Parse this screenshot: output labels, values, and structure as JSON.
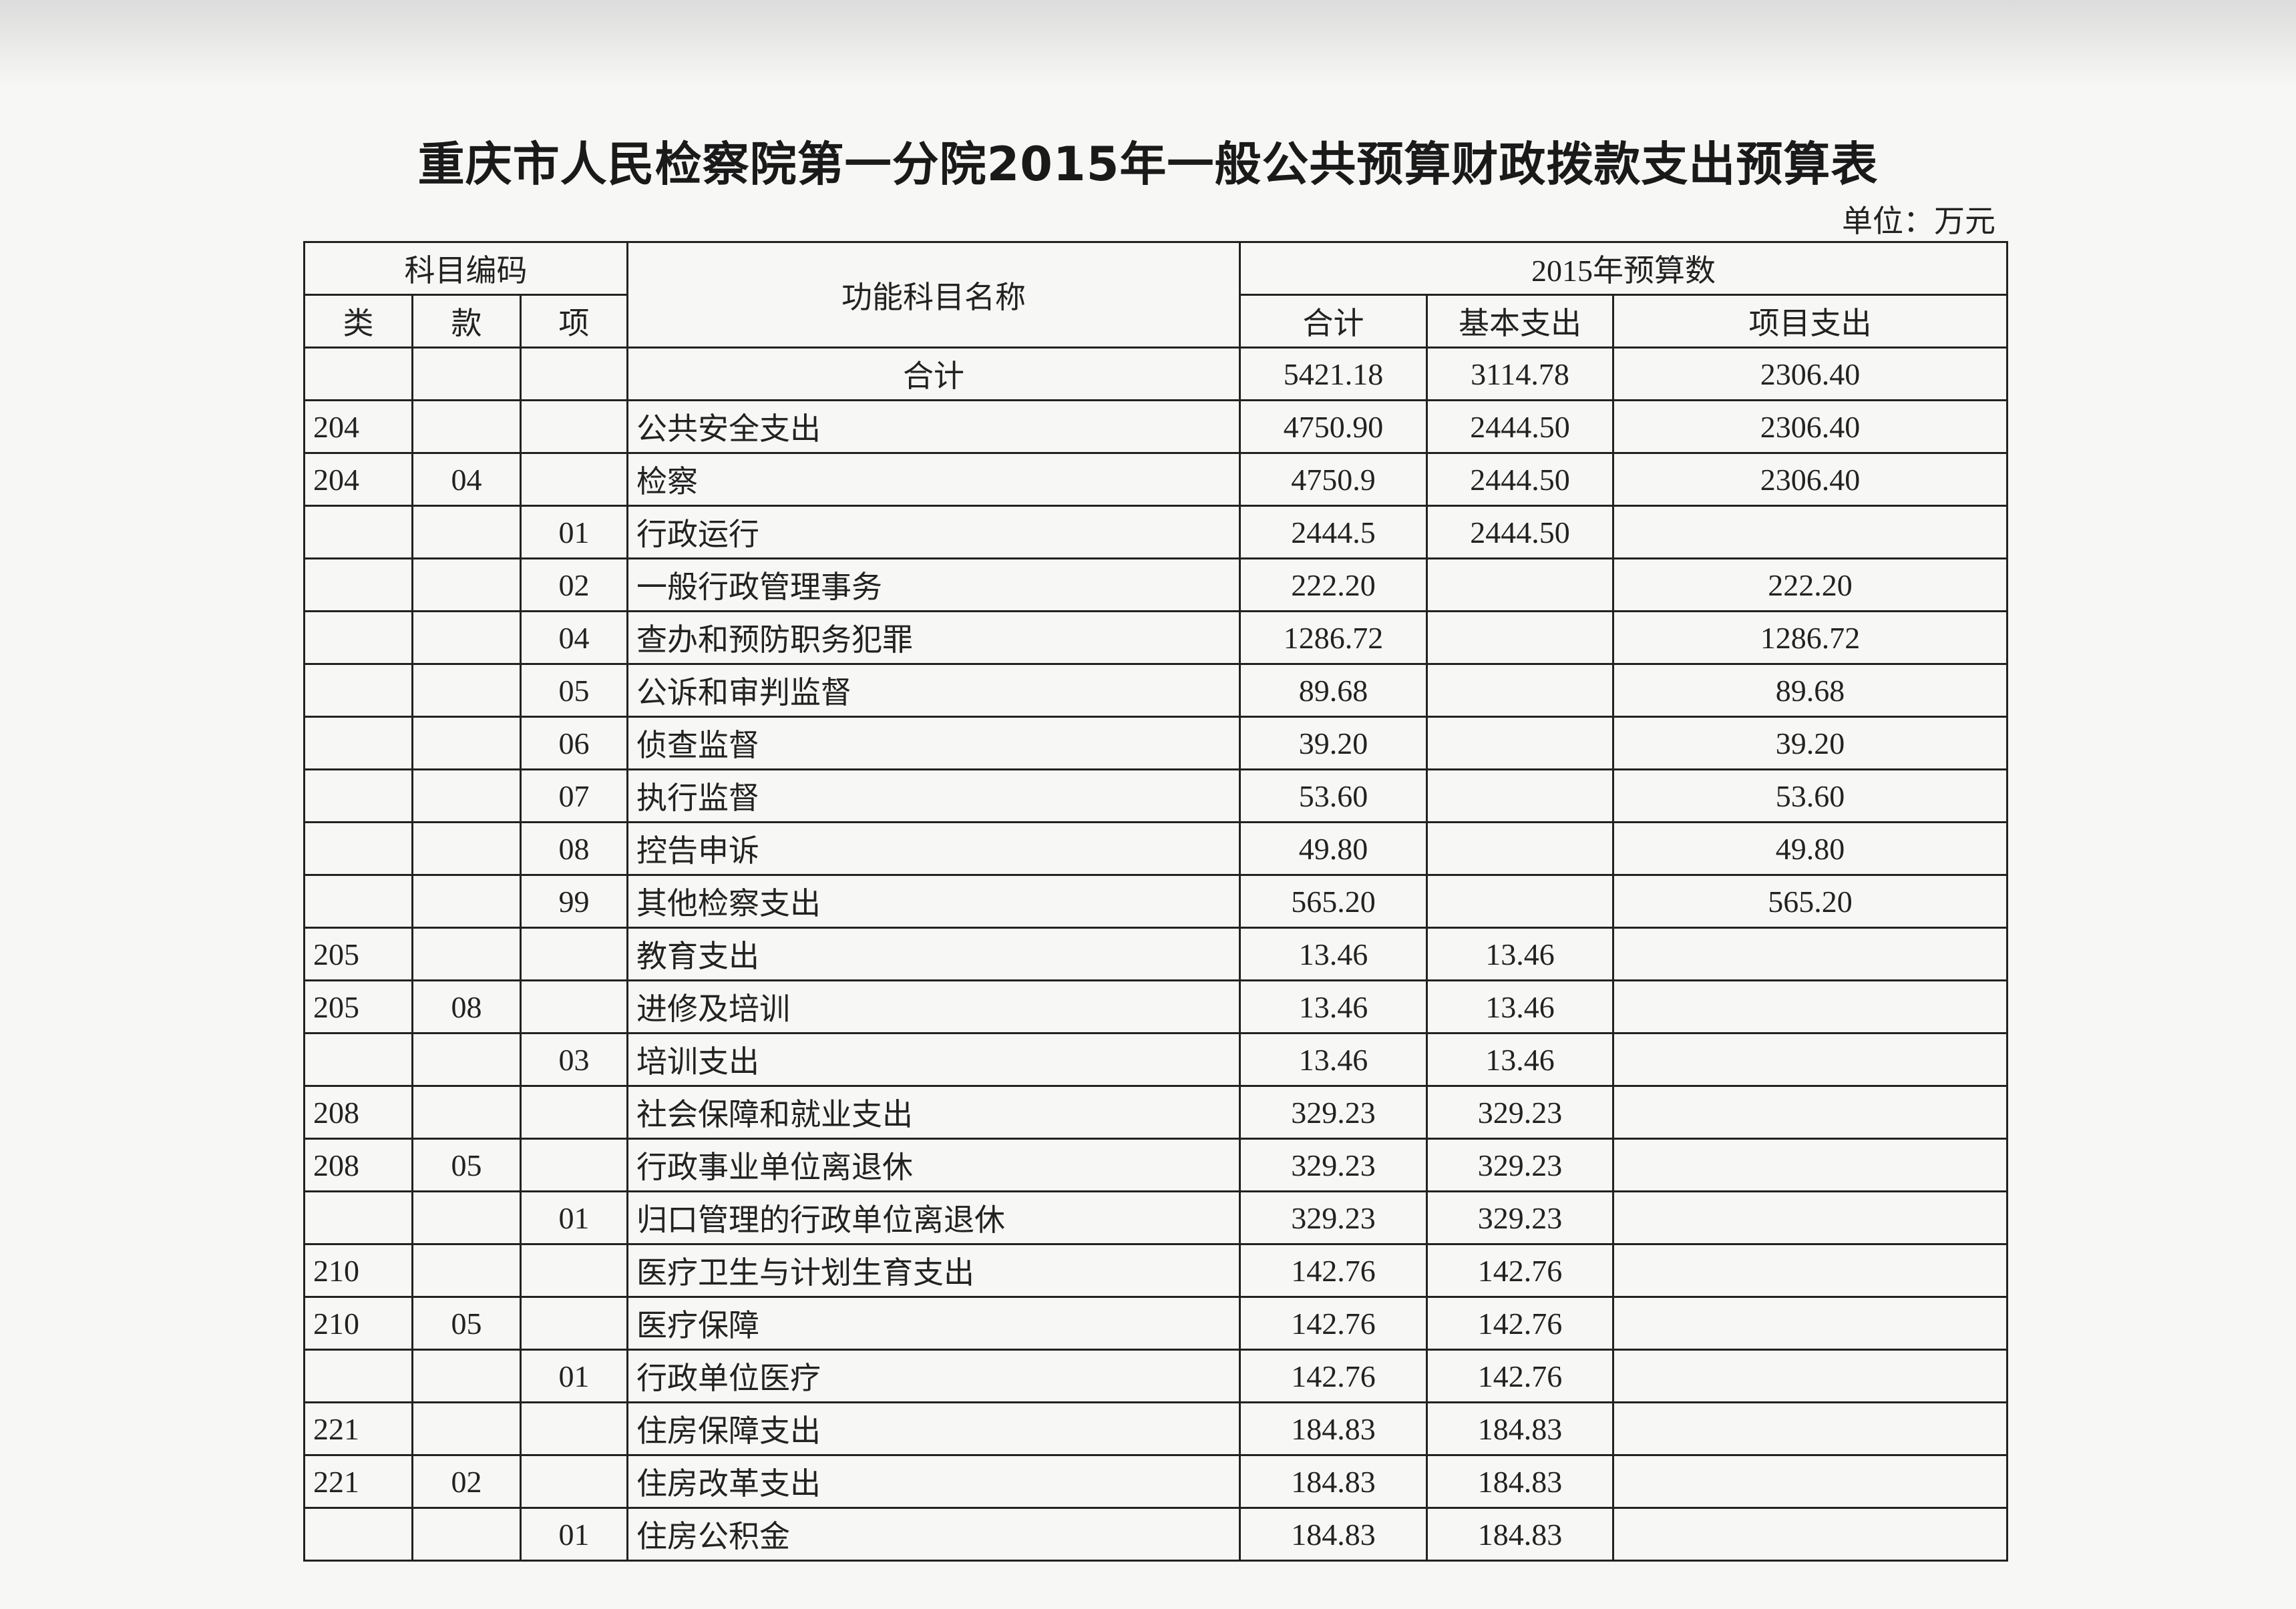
{
  "title": "重庆市人民检察院第一分院2015年一般公共预算财政拨款支出预算表",
  "unit": "单位：万元",
  "header": {
    "code_group": "科目编码",
    "lei": "类",
    "kuan": "款",
    "xiang": "项",
    "name": "功能科目名称",
    "budget_group": "2015年预算数",
    "total": "合计",
    "basic": "基本支出",
    "project": "项目支出"
  },
  "rows": [
    {
      "lei": "",
      "kuan": "",
      "xiang": "",
      "name": "合计",
      "total": "5421.18",
      "basic": "3114.78",
      "project": "2306.40",
      "center": true
    },
    {
      "lei": "204",
      "kuan": "",
      "xiang": "",
      "name": "公共安全支出",
      "total": "4750.90",
      "basic": "2444.50",
      "project": "2306.40"
    },
    {
      "lei": "204",
      "kuan": "04",
      "xiang": "",
      "name": "检察",
      "total": "4750.9",
      "basic": "2444.50",
      "project": "2306.40"
    },
    {
      "lei": "",
      "kuan": "",
      "xiang": "01",
      "name": "行政运行",
      "total": "2444.5",
      "basic": "2444.50",
      "project": ""
    },
    {
      "lei": "",
      "kuan": "",
      "xiang": "02",
      "name": "一般行政管理事务",
      "total": "222.20",
      "basic": "",
      "project": "222.20"
    },
    {
      "lei": "",
      "kuan": "",
      "xiang": "04",
      "name": "查办和预防职务犯罪",
      "total": "1286.72",
      "basic": "",
      "project": "1286.72"
    },
    {
      "lei": "",
      "kuan": "",
      "xiang": "05",
      "name": "公诉和审判监督",
      "total": "89.68",
      "basic": "",
      "project": "89.68"
    },
    {
      "lei": "",
      "kuan": "",
      "xiang": "06",
      "name": "侦查监督",
      "total": "39.20",
      "basic": "",
      "project": "39.20"
    },
    {
      "lei": "",
      "kuan": "",
      "xiang": "07",
      "name": "执行监督",
      "total": "53.60",
      "basic": "",
      "project": "53.60"
    },
    {
      "lei": "",
      "kuan": "",
      "xiang": "08",
      "name": "控告申诉",
      "total": "49.80",
      "basic": "",
      "project": "49.80"
    },
    {
      "lei": "",
      "kuan": "",
      "xiang": "99",
      "name": "其他检察支出",
      "total": "565.20",
      "basic": "",
      "project": "565.20"
    },
    {
      "lei": "205",
      "kuan": "",
      "xiang": "",
      "name": "教育支出",
      "total": "13.46",
      "basic": "13.46",
      "project": ""
    },
    {
      "lei": "205",
      "kuan": "08",
      "xiang": "",
      "name": "进修及培训",
      "total": "13.46",
      "basic": "13.46",
      "project": ""
    },
    {
      "lei": "",
      "kuan": "",
      "xiang": "03",
      "name": "培训支出",
      "total": "13.46",
      "basic": "13.46",
      "project": ""
    },
    {
      "lei": "208",
      "kuan": "",
      "xiang": "",
      "name": "社会保障和就业支出",
      "total": "329.23",
      "basic": "329.23",
      "project": ""
    },
    {
      "lei": "208",
      "kuan": "05",
      "xiang": "",
      "name": "行政事业单位离退休",
      "total": "329.23",
      "basic": "329.23",
      "project": ""
    },
    {
      "lei": "",
      "kuan": "",
      "xiang": "01",
      "name": "归口管理的行政单位离退休",
      "total": "329.23",
      "basic": "329.23",
      "project": ""
    },
    {
      "lei": "210",
      "kuan": "",
      "xiang": "",
      "name": "医疗卫生与计划生育支出",
      "total": "142.76",
      "basic": "142.76",
      "project": ""
    },
    {
      "lei": "210",
      "kuan": "05",
      "xiang": "",
      "name": "医疗保障",
      "total": "142.76",
      "basic": "142.76",
      "project": ""
    },
    {
      "lei": "",
      "kuan": "",
      "xiang": "01",
      "name": "行政单位医疗",
      "total": "142.76",
      "basic": "142.76",
      "project": ""
    },
    {
      "lei": "221",
      "kuan": "",
      "xiang": "",
      "name": "住房保障支出",
      "total": "184.83",
      "basic": "184.83",
      "project": ""
    },
    {
      "lei": "221",
      "kuan": "02",
      "xiang": "",
      "name": "住房改革支出",
      "total": "184.83",
      "basic": "184.83",
      "project": ""
    },
    {
      "lei": "",
      "kuan": "",
      "xiang": "01",
      "name": "住房公积金",
      "total": "184.83",
      "basic": "184.83",
      "project": ""
    }
  ]
}
